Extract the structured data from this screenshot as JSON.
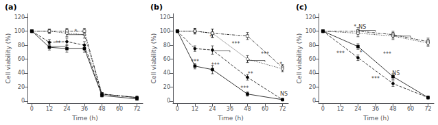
{
  "chart_data": [
    {
      "type": "line",
      "title": "(a)",
      "xlabel": "Time (h)",
      "ylabel": "Cell viability (%)",
      "x": [
        0,
        12,
        24,
        36,
        48,
        72
      ],
      "xlim": [
        -3,
        76
      ],
      "xticks": [
        0,
        12,
        24,
        36,
        48,
        60,
        72
      ],
      "ylim": [
        -3,
        125
      ],
      "yticks": [
        0,
        20,
        40,
        60,
        80,
        100,
        120
      ],
      "grid": false,
      "series": [
        {
          "color": "#000000",
          "marker": "open_square",
          "line_style": "dashdot",
          "values": [
            100,
            100,
            100,
            100,
            10,
            5
          ],
          "errors": [
            2,
            3,
            4,
            4,
            2,
            1
          ]
        },
        {
          "color": "#000000",
          "marker": "open_circle",
          "line_style": "dotted",
          "values": [
            100,
            100,
            97,
            95,
            10,
            5
          ],
          "errors": [
            2,
            3,
            5,
            5,
            2,
            1
          ]
        },
        {
          "color": "#000000",
          "marker": "square",
          "line_style": "solid",
          "values": [
            100,
            77,
            75,
            75,
            8,
            3
          ],
          "errors": [
            2,
            4,
            5,
            5,
            2,
            1
          ]
        },
        {
          "color": "#000000",
          "marker": "circle",
          "line_style": "dashed",
          "values": [
            100,
            84,
            85,
            80,
            10,
            5
          ],
          "errors": [
            2,
            4,
            5,
            5,
            2,
            1
          ]
        }
      ],
      "brackets": [
        {
          "x1": 12,
          "x2": 24,
          "yb": 76,
          "yt": 78
        },
        {
          "x1": 24,
          "x2": 36,
          "yb": 93,
          "yt": 95
        }
      ],
      "annotations": [
        {
          "x": 18,
          "y": 79,
          "text": "**"
        },
        {
          "x": 30,
          "y": 95,
          "text": "*"
        }
      ]
    },
    {
      "type": "line",
      "title": "(b)",
      "xlabel": "Time (h)",
      "ylabel": "Cell viability (%)",
      "x": [
        0,
        12,
        24,
        48,
        72
      ],
      "xlim": [
        -3,
        76
      ],
      "xticks": [
        0,
        12,
        24,
        36,
        48,
        60,
        72
      ],
      "ylim": [
        -3,
        125
      ],
      "yticks": [
        0,
        20,
        40,
        60,
        80,
        100,
        120
      ],
      "grid": false,
      "series": [
        {
          "color": "#000000",
          "marker": "open_square",
          "line_style": "dashdot",
          "values": [
            100,
            100,
            97,
            93,
            48
          ],
          "errors": [
            2,
            4,
            6,
            5,
            4
          ]
        },
        {
          "color": "#000000",
          "marker": "open_circle",
          "line_style": "dotted",
          "values": [
            100,
            100,
            97,
            60,
            46
          ],
          "errors": [
            2,
            4,
            6,
            5,
            4
          ]
        },
        {
          "color": "#000000",
          "marker": "square",
          "line_style": "solid",
          "values": [
            100,
            50,
            45,
            10,
            2
          ],
          "errors": [
            2,
            4,
            6,
            3,
            1
          ]
        },
        {
          "color": "#000000",
          "marker": "circle",
          "line_style": "dashed",
          "values": [
            100,
            75,
            73,
            34,
            2
          ],
          "errors": [
            2,
            4,
            6,
            4,
            1
          ]
        }
      ],
      "brackets": [
        {
          "x1": 24,
          "x2": 36,
          "yb": 70,
          "yt": 72
        },
        {
          "x1": 48,
          "x2": 60,
          "yb": 56,
          "yt": 58
        }
      ],
      "annotations": [
        {
          "x": 12,
          "y": 52,
          "text": "***"
        },
        {
          "x": 23,
          "y": 87,
          "text": "*"
        },
        {
          "x": 26,
          "y": 47,
          "text": "***"
        },
        {
          "x": 40,
          "y": 78,
          "text": "***"
        },
        {
          "x": 46,
          "y": 14,
          "text": "***"
        },
        {
          "x": 50,
          "y": 35,
          "text": "**"
        },
        {
          "x": 60,
          "y": 63,
          "text": "***"
        },
        {
          "x": 71,
          "y": 48,
          "text": "*"
        },
        {
          "x": 73,
          "y": 6,
          "text": "NS"
        }
      ]
    },
    {
      "type": "line",
      "title": "(c)",
      "xlabel": "Time (h)",
      "ylabel": "Cell viability (%)",
      "x": [
        0,
        24,
        48,
        72
      ],
      "xlim": [
        -3,
        76
      ],
      "xticks": [
        0,
        12,
        24,
        36,
        48,
        60,
        72
      ],
      "ylim": [
        -3,
        125
      ],
      "yticks": [
        0,
        20,
        40,
        60,
        80,
        100,
        120
      ],
      "grid": false,
      "series": [
        {
          "color": "#000000",
          "marker": "open_square",
          "line_style": "dashdot",
          "values": [
            100,
            100,
            95,
            85
          ],
          "errors": [
            2,
            5,
            5,
            5
          ]
        },
        {
          "color": "#000000",
          "marker": "open_circle",
          "line_style": "dotted",
          "values": [
            100,
            97,
            93,
            83
          ],
          "errors": [
            2,
            5,
            5,
            5
          ]
        },
        {
          "color": "#000000",
          "marker": "square",
          "line_style": "solid",
          "values": [
            100,
            78,
            35,
            5
          ],
          "errors": [
            2,
            4,
            4,
            2
          ]
        },
        {
          "color": "#000000",
          "marker": "circle",
          "line_style": "dashed",
          "values": [
            100,
            62,
            25,
            5
          ],
          "errors": [
            2,
            4,
            4,
            2
          ]
        }
      ],
      "brackets": [
        {
          "x1": 24,
          "x2": 36,
          "yb": 99,
          "yt": 101
        },
        {
          "x1": 48,
          "x2": 60,
          "yb": 91,
          "yt": 93
        }
      ],
      "annotations": [
        {
          "x": 12,
          "y": 64,
          "text": "***"
        },
        {
          "x": 22,
          "y": 102,
          "text": "*"
        },
        {
          "x": 27,
          "y": 102,
          "text": "NS"
        },
        {
          "x": 26,
          "y": 65,
          "text": "*"
        },
        {
          "x": 36,
          "y": 28,
          "text": "***"
        },
        {
          "x": 44,
          "y": 63,
          "text": "***"
        },
        {
          "x": 50,
          "y": 36,
          "text": "NS"
        }
      ]
    }
  ]
}
